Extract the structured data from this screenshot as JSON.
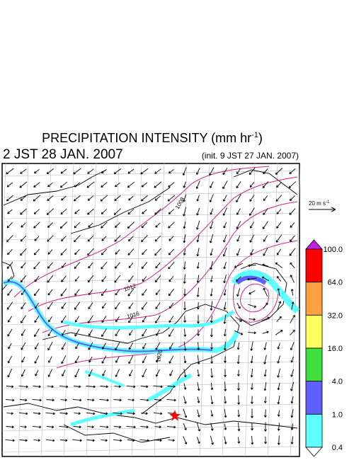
{
  "header": {
    "title": "PRECIPITATION INTENSITY (mm hr",
    "title_sup": "-1",
    "title_end": ")",
    "valid_time": "2 JST 28 JAN. 2007",
    "init_time": "(init. 9 JST 27 JAN. 2007)"
  },
  "wind_scale": {
    "label": "20 m s",
    "label_sup": "-1"
  },
  "colorbar": {
    "labels": [
      "100.0",
      "64.0",
      "32.0",
      "16.0",
      "4.0",
      "1.0",
      "0.4"
    ],
    "colors": [
      "#c020e0",
      "#ff0000",
      "#ffa040",
      "#ffff60",
      "#40e040",
      "#6060ff",
      "#60ffff",
      "#ffffff"
    ]
  },
  "isobar_labels": [
    "1008",
    "1012",
    "1016",
    "1020"
  ]
}
